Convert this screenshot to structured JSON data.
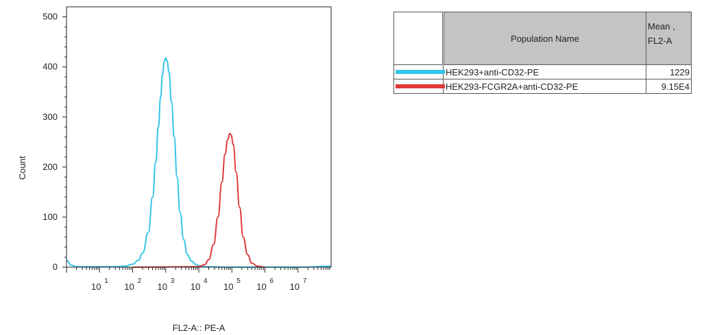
{
  "chart_data": {
    "type": "area",
    "title": "",
    "xlabel": "FL2-A:: PE-A",
    "ylabel": "Count",
    "x_scale": "log",
    "xlim": [
      1,
      100000000
    ],
    "ylim": [
      0,
      520
    ],
    "y_ticks": [
      0,
      100,
      200,
      300,
      400,
      500
    ],
    "x_ticks": [
      {
        "base": "10",
        "exp": "1",
        "value": 10
      },
      {
        "base": "10",
        "exp": "2",
        "value": 100
      },
      {
        "base": "10",
        "exp": "3",
        "value": 1000
      },
      {
        "base": "10",
        "exp": "4",
        "value": 10000
      },
      {
        "base": "10",
        "exp": "5",
        "value": 100000
      },
      {
        "base": "10",
        "exp": "6",
        "value": 1000000
      },
      {
        "base": "10",
        "exp": "7",
        "value": 10000000
      }
    ],
    "grid": false,
    "series": [
      {
        "name": "HEK293+anti-CD32-PE",
        "color": "#35c4e8",
        "peak_x": 1000,
        "peak_count": 418,
        "points": [
          [
            1,
            14
          ],
          [
            1.4,
            4
          ],
          [
            2,
            1
          ],
          [
            5,
            1
          ],
          [
            10,
            1
          ],
          [
            30,
            1
          ],
          [
            60,
            2
          ],
          [
            100,
            6
          ],
          [
            150,
            14
          ],
          [
            200,
            28
          ],
          [
            300,
            70
          ],
          [
            400,
            140
          ],
          [
            500,
            210
          ],
          [
            600,
            280
          ],
          [
            700,
            340
          ],
          [
            800,
            385
          ],
          [
            900,
            410
          ],
          [
            1000,
            418
          ],
          [
            1100,
            412
          ],
          [
            1250,
            390
          ],
          [
            1500,
            330
          ],
          [
            1800,
            260
          ],
          [
            2200,
            180
          ],
          [
            2700,
            110
          ],
          [
            3500,
            55
          ],
          [
            4500,
            25
          ],
          [
            6000,
            12
          ],
          [
            8000,
            6
          ],
          [
            10000,
            3
          ],
          [
            15000,
            1
          ],
          [
            100000,
            0
          ],
          [
            10000000,
            0
          ],
          [
            100000000,
            2
          ]
        ]
      },
      {
        "name": "HEK293-FCGR2A+anti-CD32-PE",
        "color": "#e03a3a",
        "peak_x": 91500,
        "peak_count": 267,
        "points": [
          [
            100,
            0
          ],
          [
            10000,
            1
          ],
          [
            15000,
            5
          ],
          [
            20000,
            15
          ],
          [
            28000,
            45
          ],
          [
            38000,
            100
          ],
          [
            50000,
            170
          ],
          [
            62000,
            225
          ],
          [
            75000,
            255
          ],
          [
            87000,
            267
          ],
          [
            95000,
            264
          ],
          [
            110000,
            245
          ],
          [
            135000,
            190
          ],
          [
            170000,
            120
          ],
          [
            220000,
            60
          ],
          [
            300000,
            25
          ],
          [
            400000,
            8
          ],
          [
            600000,
            2
          ],
          [
            1000000,
            0
          ]
        ]
      }
    ]
  },
  "legend_table": {
    "headers": {
      "name": "Population Name",
      "mean": "Mean ,\nFL2-A"
    },
    "rows": [
      {
        "name": "HEK293+anti-CD32-PE",
        "mean": "1229",
        "color": "#35c4e8"
      },
      {
        "name": "HEK293-FCGR2A+anti-CD32-PE",
        "mean": "9.15E4",
        "color": "#e03a3a"
      }
    ]
  }
}
